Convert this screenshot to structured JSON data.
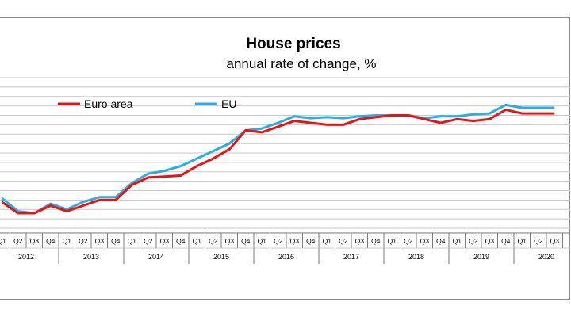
{
  "chart_data": {
    "type": "line",
    "title": "House prices",
    "subtitle": "annual rate of change, %",
    "xlabel": "",
    "ylabel": "",
    "ylim": [
      -3,
      5
    ],
    "grid": true,
    "legend_position": "top-left",
    "quarters": [
      "Q1",
      "Q2",
      "Q3",
      "Q4"
    ],
    "years": [
      "2012",
      "2013",
      "2014",
      "2015",
      "2016",
      "2017",
      "2018",
      "2019",
      "2020"
    ],
    "x": [
      "2012Q1",
      "2012Q2",
      "2012Q3",
      "2012Q4",
      "2013Q1",
      "2013Q2",
      "2013Q3",
      "2013Q4",
      "2014Q1",
      "2014Q2",
      "2014Q3",
      "2014Q4",
      "2015Q1",
      "2015Q2",
      "2015Q3",
      "2015Q4",
      "2016Q1",
      "2016Q2",
      "2016Q3",
      "2016Q4",
      "2017Q1",
      "2017Q2",
      "2017Q3",
      "2017Q4",
      "2018Q1",
      "2018Q2",
      "2018Q3",
      "2018Q4",
      "2019Q1",
      "2019Q2",
      "2019Q3",
      "2019Q4",
      "2020Q1",
      "2020Q2",
      "2020Q3"
    ],
    "series": [
      {
        "name": "Euro area",
        "color": "#ee1111",
        "values": [
          -1.6,
          -2.2,
          -2.2,
          -1.8,
          -2.1,
          -1.8,
          -1.5,
          -1.5,
          -0.7,
          -0.3,
          -0.25,
          -0.2,
          0.3,
          0.7,
          1.2,
          2.2,
          2.1,
          2.4,
          2.7,
          2.6,
          2.5,
          2.5,
          2.8,
          2.9,
          3.0,
          3.0,
          2.8,
          2.6,
          2.8,
          2.7,
          2.8,
          3.3,
          3.1,
          3.1,
          3.1
        ]
      },
      {
        "name": "EU",
        "color": "#22b0e8",
        "values": [
          -1.4,
          -2.1,
          -2.2,
          -1.7,
          -2.0,
          -1.6,
          -1.35,
          -1.35,
          -0.6,
          -0.1,
          0.05,
          0.3,
          0.7,
          1.1,
          1.5,
          2.2,
          2.3,
          2.6,
          2.95,
          2.85,
          2.9,
          2.85,
          2.95,
          3.0,
          3.0,
          3.0,
          2.85,
          2.95,
          2.95,
          3.05,
          3.1,
          3.55,
          3.4,
          3.4,
          3.4
        ]
      }
    ]
  }
}
